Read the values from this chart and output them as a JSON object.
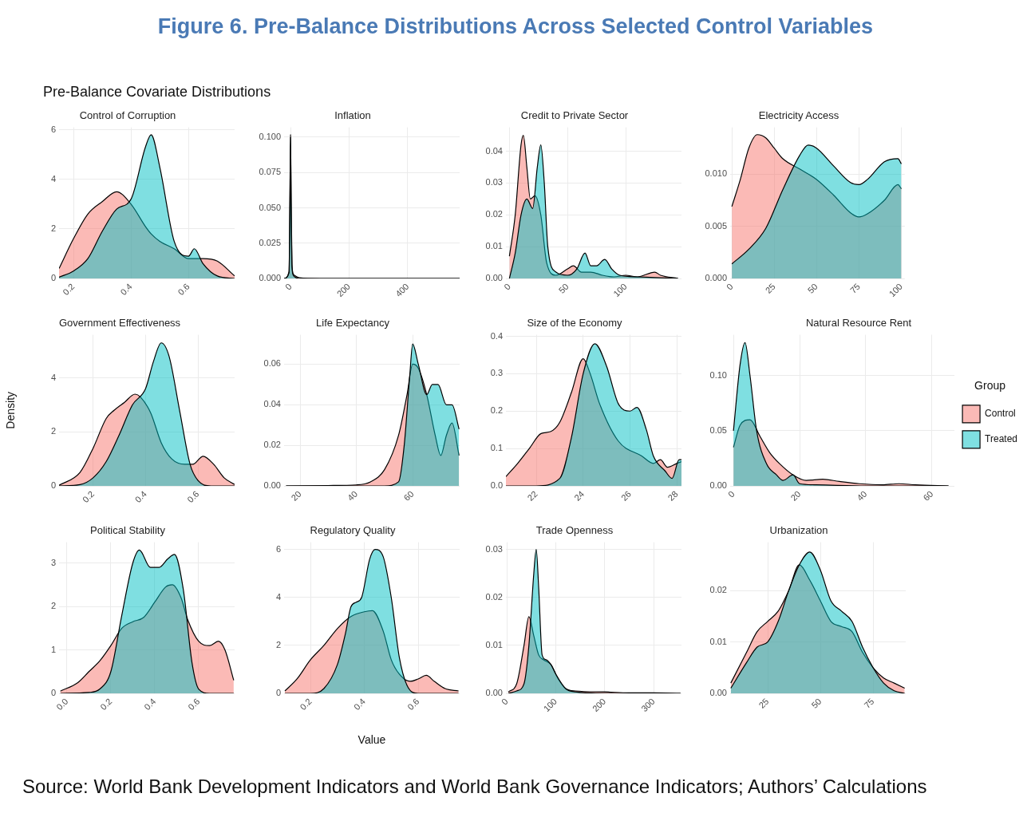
{
  "chart_data": [
    {
      "type": "area",
      "title": "Control of Corruption",
      "annotations": [
        "Figure 6. Pre-Balance Distributions Across Selected Control Variables",
        "Pre-Balance Covariate Distributions",
        "Source: World Bank Development Indicators and World Bank Governance Indicators; Authors’ Calculations"
      ],
      "xlim": [
        0.15,
        0.76
      ],
      "xticks": [
        0.2,
        0.4,
        0.6
      ],
      "ylim": [
        0,
        6.1
      ],
      "yticks": [
        0,
        2,
        4,
        6
      ],
      "grid": true,
      "series": [
        {
          "color": "#f8766d",
          "x": [
            0.15,
            0.2,
            0.25,
            0.3,
            0.35,
            0.4,
            0.45,
            0.47,
            0.5,
            0.55,
            0.6,
            0.62,
            0.65,
            0.7,
            0.76
          ],
          "values": [
            0.4,
            1.6,
            2.6,
            3.1,
            3.5,
            3.0,
            2.1,
            1.8,
            1.5,
            1.2,
            0.8,
            0.8,
            0.8,
            0.7,
            0.1
          ]
        },
        {
          "color": "#00bfc4",
          "x": [
            0.15,
            0.2,
            0.25,
            0.3,
            0.35,
            0.4,
            0.45,
            0.47,
            0.5,
            0.55,
            0.6,
            0.62,
            0.65,
            0.7,
            0.76
          ],
          "values": [
            0.05,
            0.3,
            0.8,
            1.9,
            2.8,
            3.2,
            5.3,
            5.8,
            4.5,
            1.5,
            0.9,
            1.2,
            0.6,
            0.1,
            0
          ]
        }
      ]
    },
    {
      "type": "area",
      "title": "Inflation",
      "xlim": [
        -22,
        577
      ],
      "xticks": [
        0,
        200,
        400
      ],
      "ylim": [
        0,
        0.107
      ],
      "yticks": [
        {
          "value": 0,
          "label": "0.000"
        },
        {
          "value": 0.025,
          "label": "0.025"
        },
        {
          "value": 0.05,
          "label": "0.050"
        },
        {
          "value": 0.075,
          "label": "0.075"
        },
        {
          "value": 0.1,
          "label": "0.100"
        }
      ],
      "grid": true,
      "series": [
        {
          "color": "#f8766d",
          "x": [
            -22,
            -5,
            -2,
            0,
            2,
            5,
            10,
            15,
            30,
            100,
            300,
            577
          ],
          "values": [
            0,
            0.005,
            0.06,
            0.102,
            0.06,
            0.01,
            0.003,
            0.002,
            0.0005,
            0,
            0,
            0
          ]
        },
        {
          "color": "#00bfc4",
          "x": [
            -22,
            -5,
            -2,
            0,
            2,
            5,
            10,
            15,
            30,
            100,
            300,
            577
          ],
          "values": [
            0,
            0.004,
            0.055,
            0.1,
            0.055,
            0.008,
            0.002,
            0.001,
            0,
            0,
            0,
            0
          ]
        }
      ]
    },
    {
      "type": "area",
      "title": "Credit to Private Sector",
      "xlim": [
        -3,
        148
      ],
      "xticks": [
        0,
        50,
        100
      ],
      "ylim": [
        0,
        0.0475
      ],
      "yticks": [
        {
          "value": 0,
          "label": "0.00"
        },
        {
          "value": 0.01,
          "label": "0.01"
        },
        {
          "value": 0.02,
          "label": "0.02"
        },
        {
          "value": 0.03,
          "label": "0.03"
        },
        {
          "value": 0.04,
          "label": "0.04"
        }
      ],
      "grid": true,
      "series": [
        {
          "color": "#f8766d",
          "x": [
            0,
            5,
            10,
            12,
            15,
            18,
            22,
            27,
            32,
            40,
            50,
            55,
            62,
            70,
            80,
            90,
            100,
            110,
            125,
            130,
            145
          ],
          "values": [
            0.007,
            0.02,
            0.042,
            0.045,
            0.035,
            0.025,
            0.026,
            0.02,
            0.005,
            0.001,
            0.003,
            0.004,
            0.002,
            0.002,
            0.001,
            0.0005,
            0.001,
            0.0005,
            0.002,
            0.001,
            0
          ]
        },
        {
          "color": "#00bfc4",
          "x": [
            0,
            5,
            10,
            15,
            20,
            24,
            27,
            30,
            33,
            40,
            50,
            58,
            65,
            70,
            75,
            82,
            88,
            95,
            110,
            125,
            145
          ],
          "values": [
            0,
            0.008,
            0.02,
            0.025,
            0.022,
            0.035,
            0.042,
            0.03,
            0.01,
            0.002,
            0.001,
            0.003,
            0.008,
            0.004,
            0.004,
            0.006,
            0.003,
            0.001,
            0.0005,
            0.0003,
            0
          ]
        }
      ]
    },
    {
      "type": "area",
      "title": "Electricity Access",
      "xlim": [
        -1,
        102
      ],
      "xticks": [
        0,
        25,
        50,
        75,
        100
      ],
      "ylim": [
        0,
        0.0145
      ],
      "yticks": [
        {
          "value": 0,
          "label": "0.000"
        },
        {
          "value": 0.005,
          "label": "0.005"
        },
        {
          "value": 0.01,
          "label": "0.010"
        }
      ],
      "grid": true,
      "series": [
        {
          "color": "#f8766d",
          "x": [
            0,
            5,
            10,
            15,
            20,
            25,
            30,
            40,
            50,
            60,
            70,
            75,
            80,
            90,
            98,
            100
          ],
          "values": [
            0.0069,
            0.0095,
            0.0125,
            0.0138,
            0.0135,
            0.0125,
            0.0115,
            0.0105,
            0.0095,
            0.008,
            0.0063,
            0.0059,
            0.0062,
            0.0075,
            0.009,
            0.0086
          ]
        },
        {
          "color": "#00bfc4",
          "x": [
            0,
            10,
            20,
            30,
            40,
            45,
            50,
            60,
            70,
            75,
            80,
            90,
            98,
            100
          ],
          "values": [
            0.0014,
            0.0028,
            0.0048,
            0.0085,
            0.0118,
            0.0128,
            0.0125,
            0.0108,
            0.0092,
            0.009,
            0.0095,
            0.0112,
            0.0115,
            0.011
          ]
        }
      ]
    },
    {
      "type": "area",
      "title": "Government Effectiveness",
      "ylabel": "Density",
      "xlim": [
        0.07,
        0.74
      ],
      "xticks": [
        0.2,
        0.4,
        0.6
      ],
      "ylim": [
        0,
        5.6
      ],
      "yticks": [
        0,
        2,
        4
      ],
      "grid": true,
      "series": [
        {
          "color": "#f8766d",
          "x": [
            0.07,
            0.15,
            0.2,
            0.25,
            0.28,
            0.32,
            0.36,
            0.38,
            0.42,
            0.46,
            0.5,
            0.55,
            0.58,
            0.62,
            0.66,
            0.7,
            0.74
          ],
          "values": [
            0.02,
            0.5,
            1.4,
            2.5,
            2.8,
            3.1,
            3.4,
            3.3,
            2.7,
            1.6,
            1.0,
            0.8,
            0.8,
            1.1,
            0.8,
            0.3,
            0.05
          ]
        },
        {
          "color": "#00bfc4",
          "x": [
            0.07,
            0.15,
            0.2,
            0.25,
            0.3,
            0.35,
            0.4,
            0.43,
            0.46,
            0.49,
            0.53,
            0.57,
            0.6,
            0.65,
            0.74
          ],
          "values": [
            0,
            0.05,
            0.3,
            0.9,
            1.9,
            3.0,
            3.6,
            4.6,
            5.3,
            4.8,
            2.8,
            0.8,
            0.2,
            0,
            0
          ]
        }
      ]
    },
    {
      "type": "area",
      "title": "Life Expectancy",
      "xlim": [
        14.3,
        76.7
      ],
      "xticks": [
        20,
        40,
        60
      ],
      "ylim": [
        0,
        0.0745
      ],
      "yticks": [
        {
          "value": 0,
          "label": "0.00"
        },
        {
          "value": 0.02,
          "label": "0.02"
        },
        {
          "value": 0.04,
          "label": "0.04"
        },
        {
          "value": 0.06,
          "label": "0.06"
        }
      ],
      "grid": true,
      "series": [
        {
          "color": "#f8766d",
          "x": [
            15,
            30,
            40,
            45,
            50,
            55,
            58,
            60,
            62,
            65,
            68,
            70,
            72,
            74,
            76.5
          ],
          "values": [
            0,
            0.0002,
            0.0005,
            0.002,
            0.008,
            0.025,
            0.045,
            0.06,
            0.058,
            0.045,
            0.025,
            0.015,
            0.025,
            0.031,
            0.015
          ]
        },
        {
          "color": "#00bfc4",
          "x": [
            15,
            50,
            55,
            57,
            59,
            60,
            62,
            65,
            67,
            69,
            72,
            74,
            76.5
          ],
          "values": [
            0,
            0,
            0.002,
            0.02,
            0.055,
            0.07,
            0.06,
            0.045,
            0.05,
            0.05,
            0.04,
            0.04,
            0.028
          ]
        }
      ]
    },
    {
      "type": "area",
      "title": "Size of the Economy",
      "xlim": [
        20.7,
        28.2
      ],
      "xticks": [
        22,
        24,
        26,
        28
      ],
      "ylim": [
        0,
        0.404
      ],
      "yticks": [
        {
          "value": 0,
          "label": "0.0"
        },
        0.1,
        0.2,
        0.3,
        0.4
      ],
      "grid": true,
      "series": [
        {
          "color": "#f8766d",
          "x": [
            20.7,
            21.2,
            21.7,
            22.2,
            22.6,
            23,
            23.5,
            24,
            24.3,
            24.7,
            25.5,
            26.5,
            27,
            27.3,
            27.6,
            28,
            28.2
          ],
          "values": [
            0.025,
            0.06,
            0.1,
            0.14,
            0.145,
            0.17,
            0.25,
            0.34,
            0.3,
            0.22,
            0.12,
            0.08,
            0.06,
            0.07,
            0.05,
            0.06,
            0.065
          ]
        },
        {
          "color": "#00bfc4",
          "x": [
            20.7,
            22,
            23,
            23.5,
            24,
            24.5,
            25,
            25.5,
            26,
            26.3,
            26.7,
            27,
            27.5,
            27.8,
            28.1,
            28.2
          ],
          "values": [
            0,
            0,
            0.02,
            0.13,
            0.3,
            0.38,
            0.32,
            0.22,
            0.2,
            0.21,
            0.15,
            0.08,
            0.04,
            0.02,
            0.07,
            0.07
          ]
        }
      ]
    },
    {
      "type": "area",
      "title": "Natural Resource Rent",
      "legend": "right",
      "legend_title": "Group",
      "xlim": [
        -1,
        66.8
      ],
      "xticks": [
        0,
        20,
        40,
        60
      ],
      "ylim": [
        0,
        0.137
      ],
      "yticks": [
        {
          "value": 0,
          "label": "0.00"
        },
        {
          "value": 0.05,
          "label": "0.05"
        },
        {
          "value": 0.1,
          "label": "0.10"
        }
      ],
      "grid": true,
      "series": [
        {
          "name": "Control",
          "color": "#f8766d",
          "x": [
            0,
            2,
            5,
            8,
            11,
            14,
            18,
            22,
            27,
            32,
            38,
            45,
            50,
            55,
            65
          ],
          "values": [
            0.035,
            0.055,
            0.06,
            0.045,
            0.03,
            0.02,
            0.01,
            0.005,
            0.006,
            0.004,
            0.002,
            0.001,
            0.002,
            0.001,
            0
          ]
        },
        {
          "name": "Treated",
          "color": "#00bfc4",
          "x": [
            0,
            2,
            3.5,
            5,
            7,
            10,
            13,
            15,
            18,
            20,
            25,
            40,
            65
          ],
          "values": [
            0.05,
            0.11,
            0.13,
            0.1,
            0.05,
            0.02,
            0.01,
            0.005,
            0.01,
            0.002,
            0.001,
            0,
            0
          ]
        }
      ]
    },
    {
      "type": "area",
      "title": "Political Stability",
      "xlim": [
        -0.036,
        0.764
      ],
      "xticks": [
        {
          "value": 0,
          "label": "0.0"
        },
        0.2,
        0.4,
        0.6
      ],
      "ylim": [
        0,
        3.48
      ],
      "yticks": [
        0,
        1,
        2,
        3
      ],
      "grid": true,
      "series": [
        {
          "color": "#f8766d",
          "x": [
            -0.03,
            0.05,
            0.1,
            0.15,
            0.2,
            0.25,
            0.3,
            0.35,
            0.4,
            0.45,
            0.48,
            0.52,
            0.55,
            0.6,
            0.65,
            0.69,
            0.72,
            0.76
          ],
          "values": [
            0.05,
            0.25,
            0.5,
            0.75,
            1.1,
            1.5,
            1.65,
            1.75,
            2.1,
            2.45,
            2.5,
            2.2,
            1.7,
            1.2,
            1.1,
            1.2,
            1.0,
            0.3
          ]
        },
        {
          "color": "#00bfc4",
          "x": [
            -0.03,
            0.1,
            0.15,
            0.2,
            0.25,
            0.3,
            0.33,
            0.38,
            0.42,
            0.46,
            0.49,
            0.53,
            0.57,
            0.6,
            0.65,
            0.76
          ],
          "values": [
            0,
            0.02,
            0.1,
            0.5,
            1.8,
            3.0,
            3.3,
            2.9,
            2.9,
            3.1,
            3.2,
            2.4,
            0.7,
            0.1,
            0,
            0
          ]
        }
      ]
    },
    {
      "type": "area",
      "title": "Regulatory Quality",
      "xlabel": "Value",
      "xlim": [
        0.102,
        0.754
      ],
      "xticks": [
        0.2,
        0.4,
        0.6
      ],
      "ylim": [
        0,
        6.3
      ],
      "yticks": [
        0,
        2,
        4,
        6
      ],
      "grid": true,
      "series": [
        {
          "color": "#f8766d",
          "x": [
            0.105,
            0.15,
            0.2,
            0.25,
            0.3,
            0.35,
            0.4,
            0.43,
            0.47,
            0.5,
            0.53,
            0.57,
            0.6,
            0.63,
            0.66,
            0.7,
            0.75
          ],
          "values": [
            0.1,
            0.6,
            1.4,
            2.0,
            2.7,
            3.2,
            3.4,
            3.45,
            2.6,
            1.4,
            0.8,
            0.5,
            0.6,
            0.75,
            0.5,
            0.2,
            0.1
          ]
        },
        {
          "color": "#00bfc4",
          "x": [
            0.105,
            0.2,
            0.25,
            0.3,
            0.33,
            0.35,
            0.37,
            0.39,
            0.42,
            0.44,
            0.47,
            0.5,
            0.53,
            0.56,
            0.6,
            0.75
          ],
          "values": [
            0,
            0,
            0.2,
            1.2,
            2.5,
            3.6,
            3.8,
            4.0,
            5.6,
            6.0,
            5.7,
            4.0,
            1.5,
            0.3,
            0,
            0
          ]
        }
      ]
    },
    {
      "type": "area",
      "title": "Trade Openness",
      "xlim": [
        -2,
        357
      ],
      "xticks": [
        0,
        100,
        200,
        300
      ],
      "ylim": [
        0,
        0.0315
      ],
      "yticks": [
        {
          "value": 0,
          "label": "0.00"
        },
        {
          "value": 0.01,
          "label": "0.01"
        },
        {
          "value": 0.02,
          "label": "0.02"
        },
        {
          "value": 0.03,
          "label": "0.03"
        }
      ],
      "grid": true,
      "series": [
        {
          "color": "#f8766d",
          "x": [
            3,
            20,
            35,
            45,
            55,
            65,
            75,
            90,
            105,
            120,
            140,
            200,
            250,
            300,
            355
          ],
          "values": [
            0.0003,
            0.002,
            0.01,
            0.016,
            0.012,
            0.008,
            0.007,
            0.006,
            0.003,
            0.001,
            0.0005,
            0.0003,
            0.0001,
            0.0001,
            0
          ]
        },
        {
          "color": "#00bfc4",
          "x": [
            3,
            20,
            35,
            45,
            55,
            60,
            65,
            72,
            80,
            90,
            100,
            120,
            140,
            200,
            355
          ],
          "values": [
            0,
            0.0005,
            0.002,
            0.01,
            0.025,
            0.03,
            0.022,
            0.008,
            0.007,
            0.006,
            0.004,
            0.001,
            0.0003,
            0,
            0
          ]
        }
      ]
    },
    {
      "type": "area",
      "title": "Urbanization",
      "xlim": [
        7.2,
        90.5
      ],
      "xticks": [
        25,
        50,
        75
      ],
      "ylim": [
        0,
        0.0294
      ],
      "yticks": [
        {
          "value": 0,
          "label": "0.00"
        },
        {
          "value": 0.01,
          "label": "0.01"
        },
        {
          "value": 0.02,
          "label": "0.02"
        }
      ],
      "grid": true,
      "series": [
        {
          "color": "#f8766d",
          "x": [
            7.5,
            15,
            20,
            25,
            30,
            35,
            40,
            45,
            50,
            55,
            60,
            65,
            70,
            75,
            80,
            85,
            90
          ],
          "values": [
            0.002,
            0.008,
            0.012,
            0.014,
            0.016,
            0.02,
            0.025,
            0.022,
            0.018,
            0.014,
            0.013,
            0.012,
            0.008,
            0.005,
            0.003,
            0.002,
            0.001
          ]
        },
        {
          "color": "#00bfc4",
          "x": [
            7.5,
            15,
            20,
            25,
            30,
            35,
            40,
            45,
            50,
            55,
            60,
            65,
            70,
            75,
            80,
            85,
            90
          ],
          "values": [
            0.001,
            0.006,
            0.009,
            0.01,
            0.014,
            0.02,
            0.025,
            0.0275,
            0.024,
            0.018,
            0.016,
            0.014,
            0.009,
            0.005,
            0.002,
            0.0005,
            0
          ]
        }
      ]
    }
  ]
}
